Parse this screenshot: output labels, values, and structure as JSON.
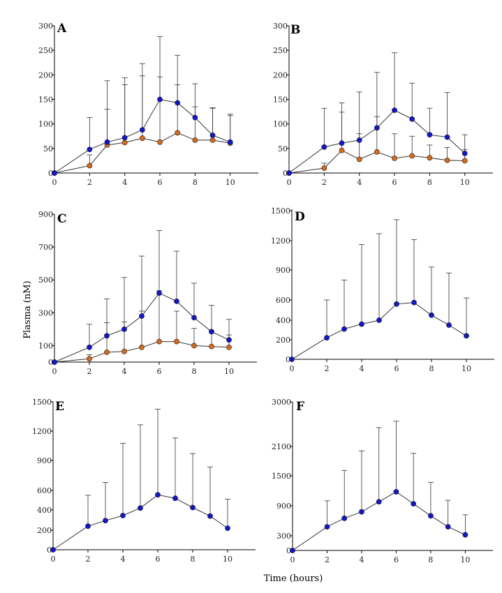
{
  "figure": {
    "ylabel": "Plasma (nM)",
    "xlabel": "Time (hours)"
  },
  "colors": {
    "blue": "#1515c8",
    "orange": "#d46a1c"
  },
  "chart_data": [
    {
      "type": "line",
      "panel": "A",
      "x": [
        0,
        2,
        3,
        4,
        5,
        6,
        7,
        8,
        9,
        10
      ],
      "xlim": [
        0,
        11.6
      ],
      "xticks": [
        0,
        2,
        4,
        6,
        8,
        10
      ],
      "ylim": [
        0,
        300
      ],
      "yticks": [
        0,
        50,
        100,
        150,
        200,
        250,
        300
      ],
      "series": [
        {
          "color": "blue",
          "values": [
            0,
            48,
            63,
            72,
            88,
            150,
            143,
            113,
            77,
            63
          ],
          "err_upper": [
            0,
            113,
            188,
            194,
            223,
            278,
            240,
            182,
            133,
            120
          ]
        },
        {
          "color": "orange",
          "values": [
            0,
            15,
            57,
            62,
            71,
            63,
            82,
            67,
            67,
            61
          ],
          "err_upper": [
            0,
            37,
            130,
            180,
            198,
            196,
            180,
            135,
            132,
            117
          ]
        }
      ]
    },
    {
      "type": "line",
      "panel": "B",
      "x": [
        0,
        2,
        3,
        4,
        5,
        6,
        7,
        8,
        9,
        10
      ],
      "xlim": [
        0,
        11.6
      ],
      "xticks": [
        0,
        2,
        4,
        6,
        8,
        10
      ],
      "ylim": [
        0,
        300
      ],
      "yticks": [
        0,
        50,
        100,
        150,
        200,
        250,
        300
      ],
      "series": [
        {
          "color": "blue",
          "values": [
            0,
            53,
            61,
            67,
            92,
            128,
            110,
            78,
            73,
            40
          ],
          "err_upper": [
            0,
            132,
            143,
            165,
            205,
            245,
            183,
            132,
            164,
            78
          ]
        },
        {
          "color": "orange",
          "values": [
            0,
            10,
            46,
            28,
            43,
            30,
            35,
            31,
            26,
            25
          ],
          "err_upper": [
            0,
            20,
            124,
            80,
            115,
            80,
            75,
            57,
            52,
            48
          ]
        }
      ]
    },
    {
      "type": "line",
      "panel": "C",
      "x": [
        0,
        2,
        3,
        4,
        5,
        6,
        7,
        8,
        9,
        10
      ],
      "xlim": [
        0,
        11.6
      ],
      "xticks": [
        0,
        2,
        4,
        6,
        8,
        10
      ],
      "ylim": [
        0,
        900
      ],
      "yticks": [
        0,
        100,
        300,
        500,
        700,
        900
      ],
      "series": [
        {
          "color": "blue",
          "values": [
            0,
            90,
            160,
            200,
            280,
            420,
            370,
            270,
            185,
            135
          ],
          "err_upper": [
            0,
            230,
            385,
            515,
            645,
            800,
            675,
            480,
            345,
            260
          ]
        },
        {
          "color": "orange",
          "values": [
            0,
            20,
            60,
            65,
            90,
            125,
            125,
            100,
            95,
            90
          ],
          "err_upper": [
            0,
            45,
            240,
            245,
            310,
            435,
            310,
            205,
            190,
            165
          ]
        }
      ]
    },
    {
      "type": "line",
      "panel": "D",
      "x": [
        0,
        2,
        3,
        4,
        5,
        6,
        7,
        8,
        9,
        10
      ],
      "xlim": [
        0,
        11.6
      ],
      "xticks": [
        0,
        2,
        4,
        6,
        8,
        10
      ],
      "yticks": [
        0,
        200,
        400,
        600,
        900,
        1200,
        1500
      ],
      "series": [
        {
          "color": "blue",
          "values": [
            0,
            220,
            310,
            360,
            400,
            560,
            575,
            450,
            350,
            240
          ],
          "err_upper": [
            0,
            600,
            800,
            1160,
            1270,
            1410,
            1210,
            930,
            870,
            620
          ]
        }
      ]
    },
    {
      "type": "line",
      "panel": "E",
      "x": [
        0,
        2,
        3,
        4,
        5,
        6,
        7,
        8,
        9,
        10
      ],
      "xlim": [
        0,
        11.6
      ],
      "xticks": [
        0,
        2,
        4,
        6,
        8,
        10
      ],
      "yticks": [
        0,
        200,
        400,
        600,
        900,
        1200,
        1500
      ],
      "series": [
        {
          "color": "blue",
          "values": [
            0,
            240,
            295,
            345,
            420,
            555,
            520,
            425,
            340,
            220
          ],
          "err_upper": [
            0,
            550,
            680,
            1075,
            1265,
            1425,
            1130,
            970,
            835,
            510
          ]
        }
      ]
    },
    {
      "type": "line",
      "panel": "F",
      "x": [
        0,
        2,
        3,
        4,
        5,
        6,
        7,
        8,
        9,
        10
      ],
      "xlim": [
        0,
        11.6
      ],
      "xticks": [
        0,
        2,
        4,
        6,
        8,
        10
      ],
      "yticks": [
        0,
        300,
        900,
        1500,
        2100,
        3000
      ],
      "series": [
        {
          "color": "blue",
          "values": [
            0,
            480,
            650,
            780,
            980,
            1180,
            940,
            700,
            480,
            320
          ],
          "err_upper": [
            0,
            1000,
            1610,
            2010,
            2480,
            2610,
            1960,
            1370,
            1010,
            720
          ]
        }
      ]
    }
  ]
}
